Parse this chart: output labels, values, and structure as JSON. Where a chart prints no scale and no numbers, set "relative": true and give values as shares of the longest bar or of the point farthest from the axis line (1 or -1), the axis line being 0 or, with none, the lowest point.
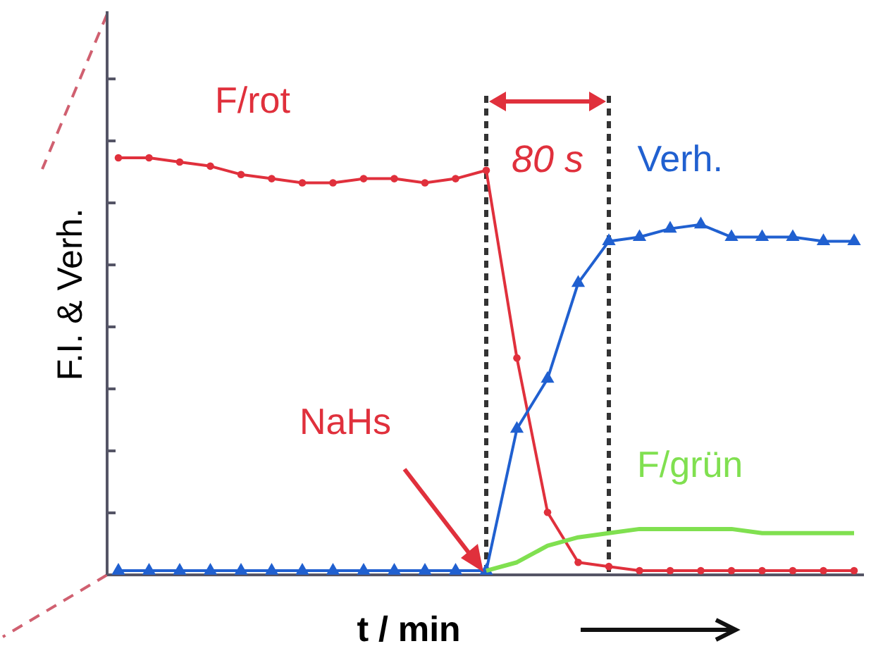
{
  "chart_data": {
    "type": "line",
    "relative": true,
    "xlabel": "t / min",
    "ylabel": "F.I. & Verh.",
    "categories": [
      null,
      null,
      null,
      null,
      null,
      null,
      null,
      null,
      null,
      null,
      null,
      null,
      null,
      null,
      null,
      null,
      null,
      null,
      null,
      null,
      null,
      null,
      null,
      null,
      null
    ],
    "series": [
      {
        "name": "F/rot",
        "color": "#e0303c",
        "marker": "circle",
        "values": [
          1.0,
          1.0,
          0.99,
          0.98,
          0.96,
          0.95,
          0.94,
          0.94,
          0.95,
          0.95,
          0.94,
          0.95,
          0.97,
          0.52,
          0.15,
          0.03,
          0.02,
          0.01,
          0.01,
          0.01,
          0.01,
          0.01,
          0.01,
          0.01,
          0.01
        ]
      },
      {
        "name": "Verh.",
        "color": "#2060d0",
        "marker": "triangle",
        "values": [
          0.01,
          0.01,
          0.01,
          0.01,
          0.01,
          0.01,
          0.01,
          0.01,
          0.01,
          0.01,
          0.01,
          0.01,
          0.01,
          0.35,
          0.47,
          0.7,
          0.8,
          0.81,
          0.83,
          0.84,
          0.81,
          0.81,
          0.81,
          0.8,
          0.8
        ]
      },
      {
        "name": "F/grün",
        "color": "#80e050",
        "marker": "none",
        "values": [
          null,
          null,
          null,
          null,
          null,
          null,
          null,
          null,
          null,
          null,
          null,
          null,
          0.01,
          0.03,
          0.07,
          0.09,
          0.1,
          0.11,
          0.11,
          0.11,
          0.11,
          0.1,
          0.1,
          0.1,
          0.1
        ]
      }
    ],
    "annotations": [
      "NaHs",
      "80 s"
    ]
  }
}
